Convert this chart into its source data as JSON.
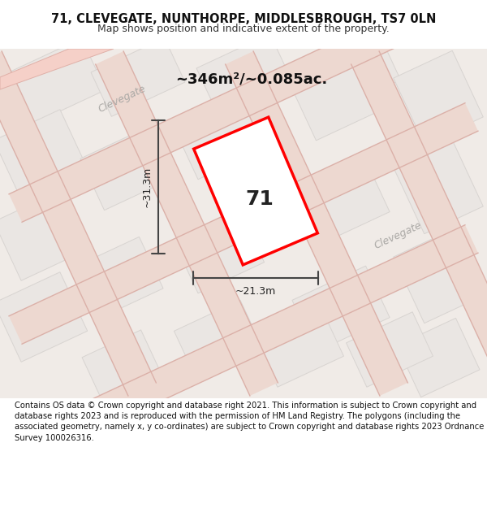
{
  "title_line1": "71, CLEVEGATE, NUNTHORPE, MIDDLESBROUGH, TS7 0LN",
  "title_line2": "Map shows position and indicative extent of the property.",
  "area_text": "~346m²/~0.085ac.",
  "plot_number": "71",
  "dim_width": "~21.3m",
  "dim_height": "~31.3m",
  "footer_text": "Contains OS data © Crown copyright and database right 2021. This information is subject to Crown copyright and database rights 2023 and is reproduced with the permission of HM Land Registry. The polygons (including the associated geometry, namely x, y co-ordinates) are subject to Crown copyright and database rights 2023 Ordnance Survey 100026316.",
  "bg_color": "#f5f0ee",
  "map_bg_color": "#f0ebe8",
  "road_color": "#e8c8c0",
  "block_color": "#e8e4e0",
  "block_fill": "#ededec",
  "road_fill": "#f5ede8",
  "property_color": "red",
  "title_bg": "#ffffff",
  "footer_bg": "#ffffff",
  "street_label_color": "#aaa8a5"
}
